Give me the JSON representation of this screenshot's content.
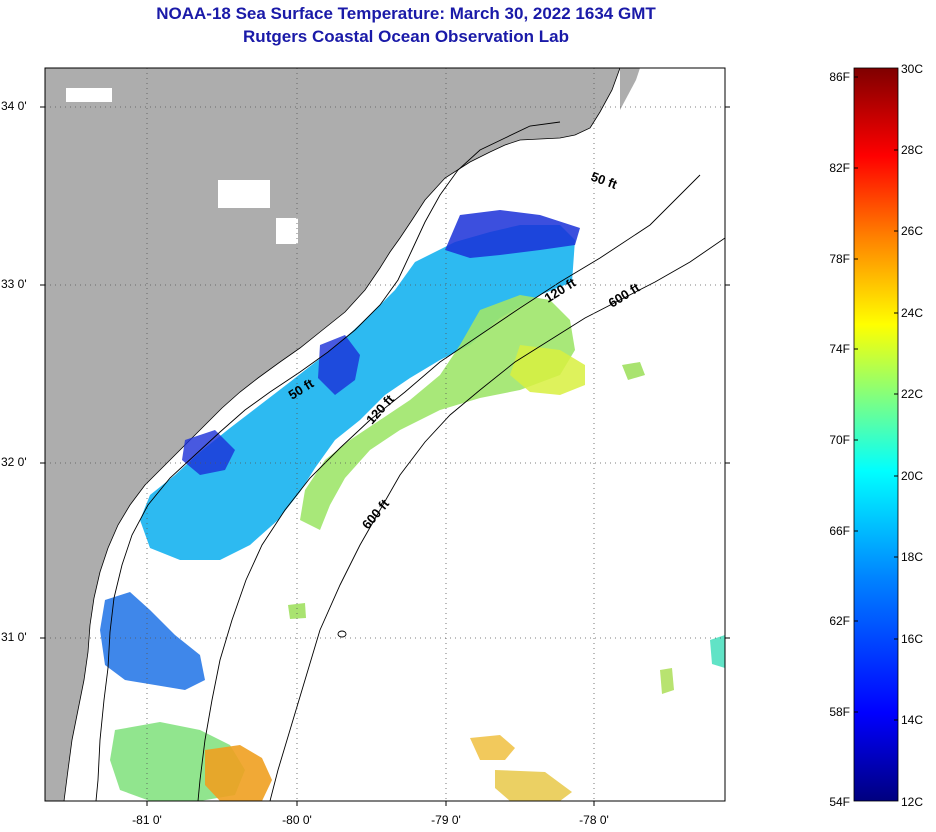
{
  "title": "NOAA-18 Sea Surface Temperature:  March 30, 2022 1634 GMT",
  "subtitle": "Rutgers Coastal Ocean Observation Lab",
  "map": {
    "lat_labels": [
      "34 0'",
      "33 0'",
      "32 0'",
      "31 0'"
    ],
    "lon_labels": [
      "-81 0'",
      "-80 0'",
      "-79 0'",
      "-78 0'"
    ],
    "isobath_labels": [
      "50 ft",
      "120 ft",
      "600 ft",
      "50 ft",
      "120 ft",
      "600 ft"
    ],
    "colors": {
      "land": "#adadad",
      "ocean": "#ffffff",
      "outline": "#000000",
      "grid": "#555555"
    }
  },
  "colorbar": {
    "fahrenheit_labels": [
      "86F",
      "82F",
      "78F",
      "74F",
      "70F",
      "66F",
      "62F",
      "58F",
      "54F"
    ],
    "celsius_labels": [
      "30C",
      "28C",
      "26C",
      "24C",
      "22C",
      "20C",
      "18C",
      "16C",
      "14C",
      "12C"
    ],
    "min_c": 12,
    "max_c": 30,
    "stops": [
      "#00007f",
      "#0000ff",
      "#0080ff",
      "#00ffff",
      "#80ff80",
      "#ffff00",
      "#ff8000",
      "#ff0000",
      "#7f0000"
    ]
  }
}
